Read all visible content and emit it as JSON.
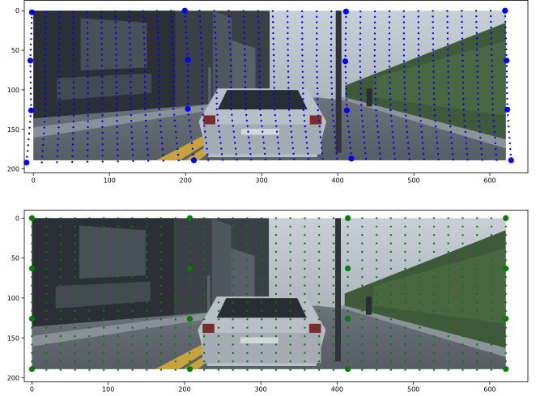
{
  "chart_data": [
    {
      "type": "scatter",
      "title": "",
      "xlabel": "",
      "ylabel": "",
      "xlim": [
        -12,
        650
      ],
      "ylim": [
        205,
        -13
      ],
      "y_inverted": true,
      "x_ticks": [
        0,
        100,
        200,
        300,
        400,
        500,
        600
      ],
      "y_ticks": [
        0,
        50,
        100,
        150,
        200
      ],
      "grid": false,
      "legend": "none",
      "background": "street scene image with a silver car driving away, buildings on the left, fence on the right",
      "series": [
        {
          "color": "#0000ff",
          "marker": "dot",
          "note": "dense warped grid of small points spanning the image",
          "x_range": [
            -5,
            630
          ],
          "y_range": [
            2,
            194
          ],
          "large_points": [
            {
              "x": -2,
              "y": 2
            },
            {
              "x": 199,
              "y": 0
            },
            {
              "x": 411,
              "y": 1
            },
            {
              "x": 620,
              "y": 0
            },
            {
              "x": -4,
              "y": 63
            },
            {
              "x": 203,
              "y": 62
            },
            {
              "x": 410,
              "y": 64
            },
            {
              "x": 622,
              "y": 63
            },
            {
              "x": -3,
              "y": 126
            },
            {
              "x": 203,
              "y": 124
            },
            {
              "x": 412,
              "y": 126
            },
            {
              "x": 623,
              "y": 125
            },
            {
              "x": -9,
              "y": 192
            },
            {
              "x": 211,
              "y": 189
            },
            {
              "x": 418,
              "y": 187
            },
            {
              "x": 628,
              "y": 189
            }
          ]
        }
      ]
    },
    {
      "type": "scatter",
      "title": "",
      "xlabel": "",
      "ylabel": "",
      "xlim": [
        -10,
        650
      ],
      "ylim": [
        205,
        -10
      ],
      "y_inverted": true,
      "x_ticks": [
        0,
        100,
        200,
        300,
        400,
        500,
        600
      ],
      "y_ticks": [
        0,
        50,
        100,
        150,
        200
      ],
      "grid": false,
      "legend": "none",
      "background": "street scene image with a silver car driving away, buildings on the left, fence on the right",
      "series": [
        {
          "color": "#008000",
          "marker": "dot",
          "note": "regular grid of small points over the image",
          "x_range": [
            0,
            621
          ],
          "y_range": [
            0,
            190
          ],
          "large_points": [
            {
              "x": 0,
              "y": 0
            },
            {
              "x": 207,
              "y": 0
            },
            {
              "x": 414,
              "y": 0
            },
            {
              "x": 621,
              "y": 0
            },
            {
              "x": 0,
              "y": 63
            },
            {
              "x": 207,
              "y": 63
            },
            {
              "x": 414,
              "y": 63
            },
            {
              "x": 621,
              "y": 63
            },
            {
              "x": 0,
              "y": 126
            },
            {
              "x": 207,
              "y": 126
            },
            {
              "x": 414,
              "y": 126
            },
            {
              "x": 621,
              "y": 126
            },
            {
              "x": 0,
              "y": 189
            },
            {
              "x": 207,
              "y": 189
            },
            {
              "x": 414,
              "y": 189
            },
            {
              "x": 621,
              "y": 189
            }
          ]
        }
      ]
    }
  ]
}
